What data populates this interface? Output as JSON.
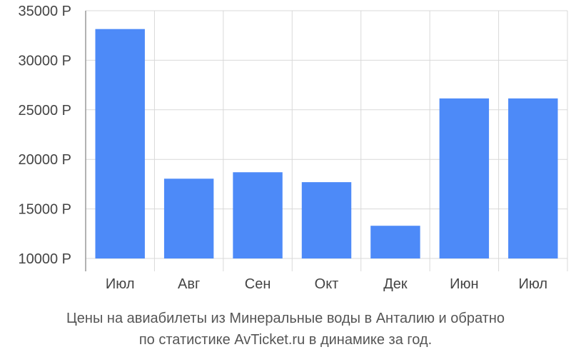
{
  "chart_data": {
    "type": "bar",
    "title_line1": "Цены на авиабилеты из Минеральные воды в Анталию и обратно",
    "title_line2": "по статистике AvTicket.ru в динамике за год.",
    "categories": [
      "Июл",
      "Авг",
      "Сен",
      "Окт",
      "Дек",
      "Июн",
      "Июл"
    ],
    "values": [
      33150,
      18050,
      18700,
      17700,
      13300,
      26150,
      26150
    ],
    "y_tick_labels": [
      "10000 Р",
      "15000 Р",
      "20000 Р",
      "25000 Р",
      "30000 Р",
      "35000 Р"
    ],
    "ylim": [
      10000,
      35000
    ],
    "grid": true,
    "bar_color": "#4d8af8",
    "grid_color": "#d9d9d9",
    "axis_color": "#999999"
  }
}
